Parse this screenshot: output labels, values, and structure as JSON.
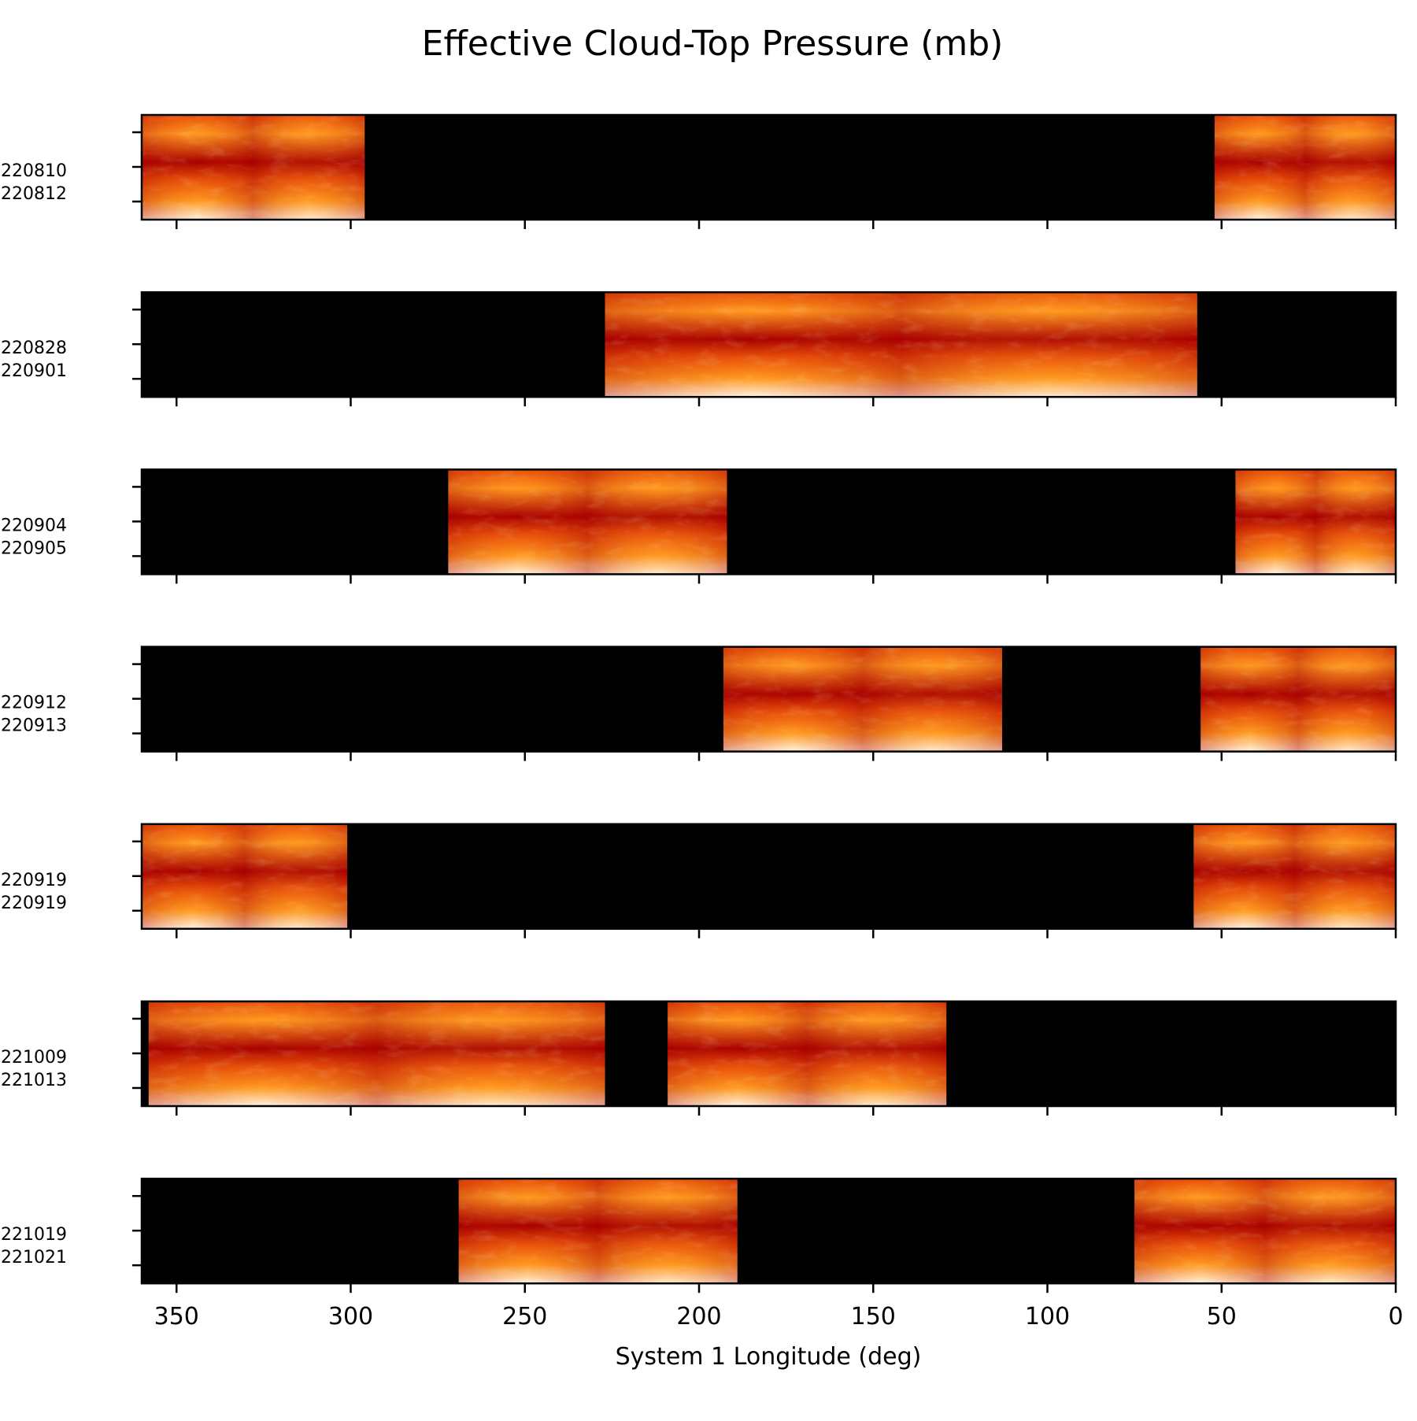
{
  "chart_data": {
    "type": "heatmap",
    "title": "Effective Cloud-Top Pressure (mb)",
    "xlabel": "System 1 Longitude (deg)",
    "ylabel": "",
    "xlim": [
      360,
      0
    ],
    "x_reversed": true,
    "xticks": [
      350,
      300,
      250,
      200,
      150,
      100,
      50,
      0
    ],
    "y_ticks_per_panel": 3,
    "colormap": "black-red-orange-white",
    "colors": {
      "background": "#000000",
      "low": "#a80000",
      "mid": "#e8500a",
      "high": "#ff9a20",
      "peak": "#fff4e6"
    },
    "panels": [
      {
        "ytick_labels": [
          "220810",
          "220812"
        ],
        "coverage": [
          [
            360,
            296
          ],
          [
            52,
            0
          ]
        ]
      },
      {
        "ytick_labels": [
          "220828",
          "220901"
        ],
        "coverage": [
          [
            227,
            57
          ]
        ]
      },
      {
        "ytick_labels": [
          "220904",
          "220905"
        ],
        "coverage": [
          [
            272,
            192
          ],
          [
            46,
            0
          ]
        ]
      },
      {
        "ytick_labels": [
          "220912",
          "220913"
        ],
        "coverage": [
          [
            193,
            113
          ],
          [
            56,
            0
          ]
        ]
      },
      {
        "ytick_labels": [
          "220919",
          "220919"
        ],
        "coverage": [
          [
            360,
            301
          ],
          [
            58,
            0
          ]
        ]
      },
      {
        "ytick_labels": [
          "221009",
          "221013"
        ],
        "coverage": [
          [
            358,
            227
          ],
          [
            209,
            129
          ]
        ]
      },
      {
        "ytick_labels": [
          "221019",
          "221021"
        ],
        "coverage": [
          [
            269,
            189
          ],
          [
            75,
            0
          ]
        ]
      }
    ]
  }
}
